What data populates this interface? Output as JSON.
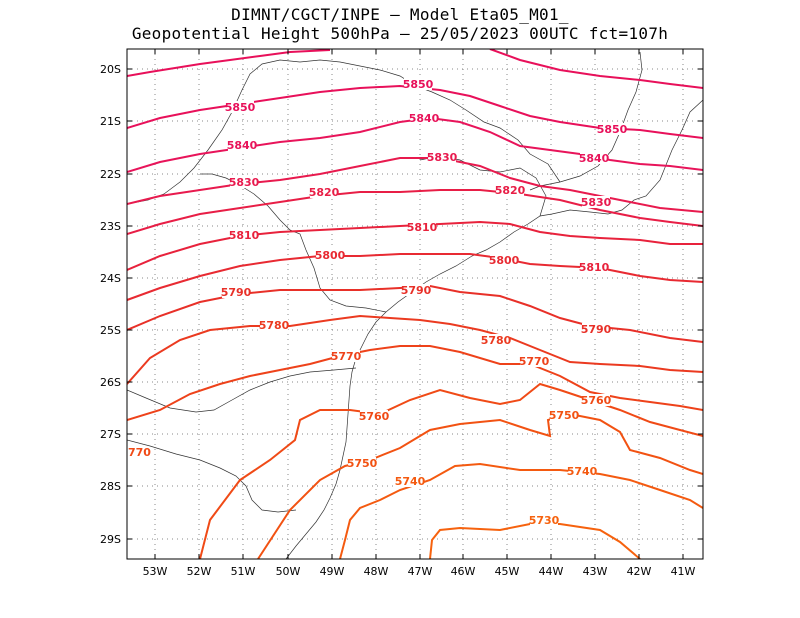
{
  "header": {
    "line1": "DIMNT/CGCT/INPE –  Model Eta05_M01_",
    "line2": "Geopotential Height 500hPa –  25/05/2023 00UTC fct=107h"
  },
  "axes": {
    "lat_labels": [
      "20S",
      "21S",
      "22S",
      "23S",
      "24S",
      "25S",
      "26S",
      "27S",
      "28S",
      "29S"
    ],
    "lon_labels": [
      "53W",
      "52W",
      "51W",
      "50W",
      "49W",
      "48W",
      "47W",
      "46W",
      "45W",
      "44W",
      "43W",
      "42W",
      "41W"
    ]
  },
  "contours": [
    {
      "value": 5850,
      "label": "5850",
      "color": "#e8105a"
    },
    {
      "value": 5840,
      "label": "5840",
      "color": "#e8145a"
    },
    {
      "value": 5830,
      "label": "5830",
      "color": "#e81a4e"
    },
    {
      "value": 5820,
      "label": "5820",
      "color": "#e81e46"
    },
    {
      "value": 5810,
      "label": "5810",
      "color": "#e8223c"
    },
    {
      "value": 5800,
      "label": "5800",
      "color": "#e82a32"
    },
    {
      "value": 5790,
      "label": "5790",
      "color": "#e83028"
    },
    {
      "value": 5780,
      "label": "5780",
      "color": "#eb3a20"
    },
    {
      "value": 5770,
      "label": "5770",
      "color": "#ee421a"
    },
    {
      "value": 5760,
      "label": "5760",
      "color": "#f04a16"
    },
    {
      "value": 5750,
      "label": "5750",
      "color": "#f25212"
    },
    {
      "value": 5740,
      "label": "5740",
      "color": "#f45a10"
    },
    {
      "value": 5730,
      "label": "5730",
      "color": "#f6620e"
    }
  ],
  "edge_label": "770"
}
